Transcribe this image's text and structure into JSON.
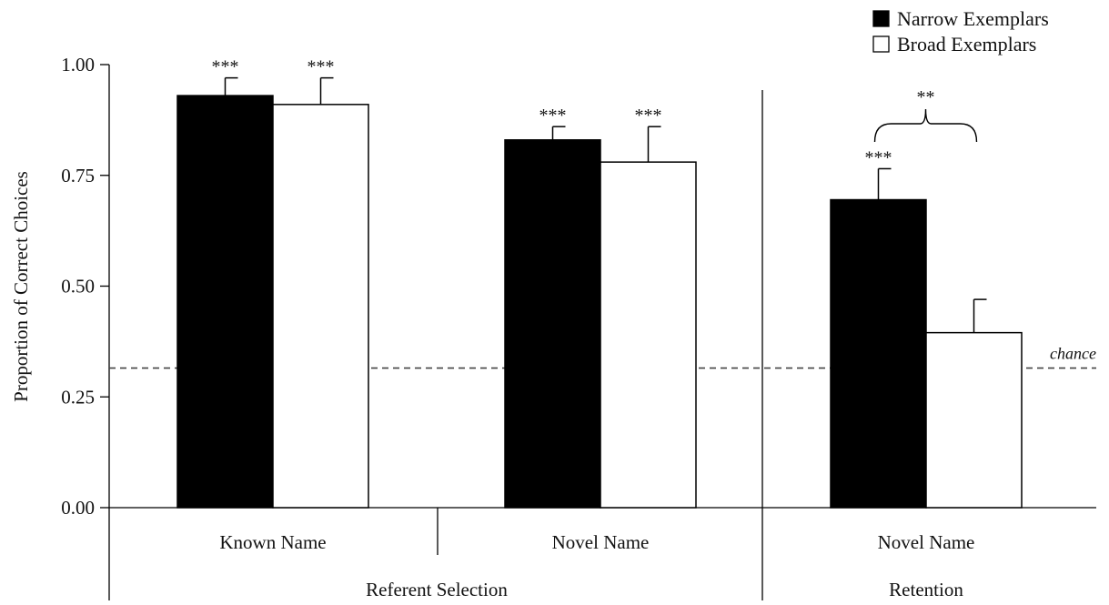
{
  "chart_data": {
    "type": "bar",
    "ylabel": "Proportion of Correct Choices",
    "ylim": [
      0,
      1
    ],
    "yticks": [
      "0.00",
      "0.25",
      "0.50",
      "0.75",
      "1.00"
    ],
    "categories": [
      "Known Name",
      "Novel Name",
      "Novel Name"
    ],
    "groups": [
      {
        "label": "Referent Selection",
        "categories": [
          0,
          1
        ]
      },
      {
        "label": "Retention",
        "categories": [
          2
        ]
      }
    ],
    "series": [
      {
        "name": "Narrow Exemplars",
        "color": "#000000",
        "values": [
          0.93,
          0.83,
          0.695
        ],
        "errors": [
          0.04,
          0.03,
          0.07
        ],
        "significance": [
          "***",
          "***",
          "***"
        ]
      },
      {
        "name": "Broad Exemplars",
        "color": "#ffffff",
        "values": [
          0.91,
          0.78,
          0.395
        ],
        "errors": [
          0.06,
          0.08,
          0.075
        ],
        "significance": [
          "***",
          "***",
          ""
        ]
      }
    ],
    "chance": {
      "value": 0.315,
      "label": "chance"
    },
    "comparison": {
      "category": 2,
      "label": "**"
    },
    "legend_position": "top-right",
    "grid": false
  }
}
